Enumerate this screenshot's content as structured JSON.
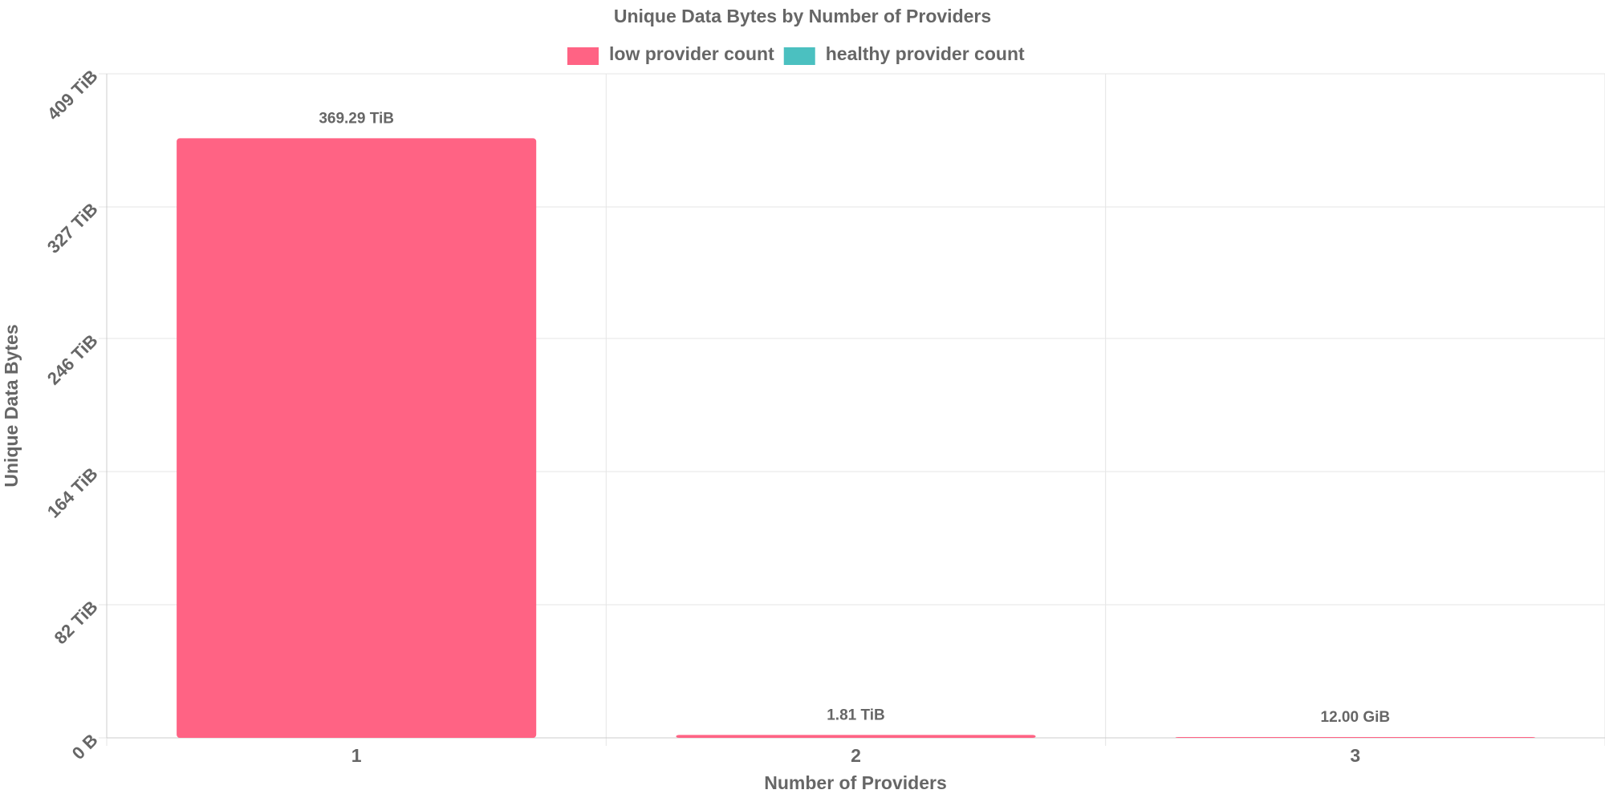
{
  "chart_data": {
    "type": "bar",
    "title": "Unique Data Bytes by Number of Providers",
    "x_label": "Number of Providers",
    "y_label": "Unique Data Bytes",
    "categories": [
      "1",
      "2",
      "3"
    ],
    "series": [
      {
        "name": "low provider count",
        "color": "#ff6384",
        "values": [
          369.29,
          1.81,
          0.01171875
        ],
        "value_labels": [
          "369.29 TiB",
          "1.81 TiB",
          "12.00 GiB"
        ]
      },
      {
        "name": "healthy provider count",
        "color": "#4bc0c0",
        "values": [
          null,
          null,
          null
        ]
      }
    ],
    "ylim": [
      0,
      409
    ],
    "yticks": [
      {
        "value": 0,
        "label": "0 B"
      },
      {
        "value": 82,
        "label": "82 TiB"
      },
      {
        "value": 164,
        "label": "164 TiB"
      },
      {
        "value": 246,
        "label": "246 TiB"
      },
      {
        "value": 327,
        "label": "327 TiB"
      },
      {
        "value": 409,
        "label": "409 TiB"
      }
    ],
    "grid": true,
    "legend": "top"
  }
}
